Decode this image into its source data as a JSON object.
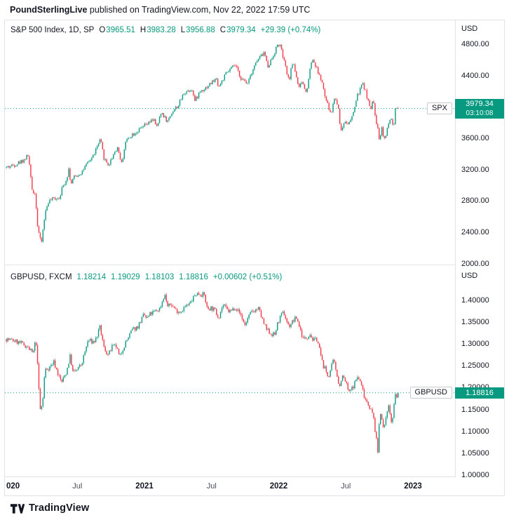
{
  "header": {
    "author": "PoundSterlingLive",
    "rest": " published on TradingView.com, Nov 22, 2022 17:59 UTC"
  },
  "footer": {
    "brand": "TradingView"
  },
  "colors": {
    "up": "#089981",
    "down": "#F23645",
    "accent": "#089981",
    "text": "#131722",
    "grid": "#e0e3eb"
  },
  "panels": [
    {
      "legend": {
        "title": "S&P 500 Index, 1D, SP",
        "items": [
          {
            "k": "O",
            "v": "3965.51"
          },
          {
            "k": "H",
            "v": "3983.28"
          },
          {
            "k": "L",
            "v": "3956.88"
          },
          {
            "k": "C",
            "v": "3979.34"
          }
        ],
        "change": "+29.39 (+0.74%)"
      },
      "currency": "USD",
      "axis_labels": [
        {
          "text": "4800.00",
          "value": 4800
        },
        {
          "text": "4400.00",
          "value": 4400
        },
        {
          "text": "4000.00",
          "value": 4000
        },
        {
          "text": "3600.00",
          "value": 3600
        },
        {
          "text": "3200.00",
          "value": 3200
        },
        {
          "text": "2800.00",
          "value": 2800
        },
        {
          "text": "2400.00",
          "value": 2400
        },
        {
          "text": "2000.00",
          "value": 2000
        }
      ],
      "last": {
        "symbol": "SPX",
        "price": "3979.34",
        "countdown": "03:10:08",
        "value": 3979.34
      }
    },
    {
      "legend": {
        "title": "GBPUSD, FXCM",
        "items": [
          {
            "k": "",
            "v": "1.18214"
          },
          {
            "k": "",
            "v": "1.19029"
          },
          {
            "k": "",
            "v": "1.18103"
          },
          {
            "k": "",
            "v": "1.18816"
          }
        ],
        "change": "+0.00602 (+0.51%)"
      },
      "currency": "USD",
      "axis_labels": [
        {
          "text": "1.40000",
          "value": 1.4
        },
        {
          "text": "1.35000",
          "value": 1.35
        },
        {
          "text": "1.30000",
          "value": 1.3
        },
        {
          "text": "1.25000",
          "value": 1.25
        },
        {
          "text": "1.20000",
          "value": 1.2
        },
        {
          "text": "1.15000",
          "value": 1.15
        },
        {
          "text": "1.10000",
          "value": 1.1
        },
        {
          "text": "1.05000",
          "value": 1.05
        },
        {
          "text": "1.00000",
          "value": 1.0
        }
      ],
      "last": {
        "symbol": "GBPUSD",
        "price": "1.18816",
        "value": 1.18816
      }
    }
  ],
  "time_axis": [
    {
      "label": "020",
      "t": 0,
      "bold": true,
      "edge": true
    },
    {
      "label": "Jul",
      "t": 6
    },
    {
      "label": "2021",
      "t": 12,
      "bold": true
    },
    {
      "label": "Jul",
      "t": 18
    },
    {
      "label": "2022",
      "t": 24,
      "bold": true
    },
    {
      "label": "Jul",
      "t": 30
    },
    {
      "label": "2023",
      "t": 36,
      "bold": true
    }
  ],
  "chart_data": [
    {
      "type": "candlestick",
      "symbol": "SPX",
      "name": "S&P 500 Index",
      "exchange": "SP",
      "timeframe": "1D",
      "x_unit": "months_since_2020_01",
      "t_range": [
        -0.4,
        34.73
      ],
      "ylim": [
        1990,
        5090
      ],
      "open": 3965.51,
      "high": 3983.28,
      "low": 3956.88,
      "last_close": 3979.34,
      "change": 29.39,
      "change_pct": 0.74,
      "anchors": [
        [
          -0.4,
          3225
        ],
        [
          0.5,
          3268
        ],
        [
          1.2,
          3322
        ],
        [
          1.63,
          3386
        ],
        [
          1.93,
          2954
        ],
        [
          2.25,
          2882
        ],
        [
          2.45,
          2481
        ],
        [
          2.77,
          2237
        ],
        [
          3.1,
          2627
        ],
        [
          3.4,
          2790
        ],
        [
          3.9,
          2830
        ],
        [
          4.4,
          2848
        ],
        [
          4.63,
          2955
        ],
        [
          5.03,
          3080
        ],
        [
          5.27,
          3232
        ],
        [
          5.4,
          3009
        ],
        [
          5.7,
          3100
        ],
        [
          6.3,
          3155
        ],
        [
          6.9,
          3271
        ],
        [
          7.4,
          3373
        ],
        [
          8.07,
          3580
        ],
        [
          8.4,
          3339
        ],
        [
          8.8,
          3255
        ],
        [
          9.3,
          3420
        ],
        [
          9.6,
          3483
        ],
        [
          9.97,
          3270
        ],
        [
          10.3,
          3550
        ],
        [
          10.77,
          3638
        ],
        [
          11.5,
          3700
        ],
        [
          11.97,
          3756
        ],
        [
          12.5,
          3800
        ],
        [
          12.87,
          3855
        ],
        [
          13.05,
          3714
        ],
        [
          13.53,
          3935
        ],
        [
          14.05,
          3811
        ],
        [
          14.5,
          3943
        ],
        [
          15.03,
          4020
        ],
        [
          15.55,
          4185
        ],
        [
          16.3,
          4233
        ],
        [
          16.45,
          4063
        ],
        [
          17.0,
          4204
        ],
        [
          17.5,
          4247
        ],
        [
          18.4,
          4360
        ],
        [
          18.65,
          4258
        ],
        [
          19.3,
          4423
        ],
        [
          19.9,
          4509
        ],
        [
          20.07,
          4537
        ],
        [
          20.67,
          4357
        ],
        [
          21.15,
          4300
        ],
        [
          21.87,
          4544
        ],
        [
          22.3,
          4630
        ],
        [
          22.73,
          4698
        ],
        [
          23.0,
          4513
        ],
        [
          23.4,
          4620
        ],
        [
          23.9,
          4791
        ],
        [
          24.1,
          4797
        ],
        [
          24.77,
          4410
        ],
        [
          24.9,
          4326
        ],
        [
          25.27,
          4587
        ],
        [
          25.6,
          4380
        ],
        [
          25.8,
          4225
        ],
        [
          26.1,
          4328
        ],
        [
          26.45,
          4173
        ],
        [
          26.97,
          4631
        ],
        [
          27.4,
          4488
        ],
        [
          27.9,
          4300
        ],
        [
          28.07,
          4155
        ],
        [
          28.6,
          3930
        ],
        [
          28.67,
          3901
        ],
        [
          29.0,
          4132
        ],
        [
          29.35,
          3978
        ],
        [
          29.55,
          3675
        ],
        [
          29.9,
          3825
        ],
        [
          30.3,
          3790
        ],
        [
          30.55,
          3863
        ],
        [
          31.0,
          4130
        ],
        [
          31.53,
          4305
        ],
        [
          32.1,
          4030
        ],
        [
          32.2,
          3908
        ],
        [
          32.4,
          4110
        ],
        [
          32.65,
          3873
        ],
        [
          33.0,
          3586
        ],
        [
          33.2,
          3745
        ],
        [
          33.43,
          3583
        ],
        [
          33.65,
          3678
        ],
        [
          33.87,
          3808
        ],
        [
          34.03,
          3872
        ],
        [
          34.17,
          3770
        ],
        [
          34.3,
          3748
        ],
        [
          34.4,
          3956
        ],
        [
          34.5,
          3993
        ],
        [
          34.62,
          3950
        ],
        [
          34.73,
          3979
        ]
      ],
      "n_candles": 290,
      "jitter": 28,
      "wick": 20,
      "seed": 42
    },
    {
      "type": "candlestick",
      "symbol": "GBPUSD",
      "name": "GBPUSD",
      "exchange": "FXCM",
      "timeframe": "1D",
      "x_unit": "months_since_2020_01",
      "t_range": [
        -0.4,
        34.73
      ],
      "ylim": [
        1.0,
        1.48
      ],
      "open": 1.18214,
      "high": 1.19029,
      "low": 1.18103,
      "last_close": 1.18816,
      "change": 0.00602,
      "change_pct": 0.51,
      "anchors": [
        [
          -0.4,
          1.312
        ],
        [
          0.4,
          1.307
        ],
        [
          0.9,
          1.302
        ],
        [
          1.5,
          1.295
        ],
        [
          1.9,
          1.282
        ],
        [
          2.05,
          1.277
        ],
        [
          2.3,
          1.313
        ],
        [
          2.5,
          1.228
        ],
        [
          2.67,
          1.149
        ],
        [
          2.9,
          1.163
        ],
        [
          3.1,
          1.241
        ],
        [
          3.5,
          1.246
        ],
        [
          3.9,
          1.259
        ],
        [
          4.3,
          1.23
        ],
        [
          4.6,
          1.212
        ],
        [
          5.0,
          1.234
        ],
        [
          5.37,
          1.273
        ],
        [
          5.6,
          1.235
        ],
        [
          5.97,
          1.24
        ],
        [
          6.4,
          1.255
        ],
        [
          6.97,
          1.309
        ],
        [
          7.3,
          1.305
        ],
        [
          7.6,
          1.307
        ],
        [
          8.03,
          1.338
        ],
        [
          8.37,
          1.292
        ],
        [
          8.77,
          1.274
        ],
        [
          9.1,
          1.293
        ],
        [
          9.5,
          1.294
        ],
        [
          9.77,
          1.268
        ],
        [
          10.1,
          1.292
        ],
        [
          10.5,
          1.312
        ],
        [
          10.9,
          1.332
        ],
        [
          11.37,
          1.339
        ],
        [
          11.97,
          1.367
        ],
        [
          12.2,
          1.357
        ],
        [
          12.5,
          1.368
        ],
        [
          12.87,
          1.373
        ],
        [
          13.37,
          1.381
        ],
        [
          13.8,
          1.414
        ],
        [
          14.1,
          1.384
        ],
        [
          14.37,
          1.392
        ],
        [
          14.8,
          1.378
        ],
        [
          15.2,
          1.374
        ],
        [
          15.57,
          1.384
        ],
        [
          16.0,
          1.39
        ],
        [
          16.6,
          1.415
        ],
        [
          17.0,
          1.4155
        ],
        [
          17.37,
          1.411
        ],
        [
          17.6,
          1.381
        ],
        [
          17.97,
          1.383
        ],
        [
          18.3,
          1.377
        ],
        [
          18.63,
          1.361
        ],
        [
          19.0,
          1.39
        ],
        [
          19.5,
          1.375
        ],
        [
          19.77,
          1.376
        ],
        [
          20.1,
          1.386
        ],
        [
          20.63,
          1.366
        ],
        [
          20.97,
          1.343
        ],
        [
          21.3,
          1.362
        ],
        [
          21.63,
          1.375
        ],
        [
          22.2,
          1.381
        ],
        [
          22.63,
          1.349
        ],
        [
          22.9,
          1.333
        ],
        [
          23.3,
          1.324
        ],
        [
          23.63,
          1.32
        ],
        [
          23.97,
          1.353
        ],
        [
          24.43,
          1.373
        ],
        [
          24.9,
          1.34
        ],
        [
          25.3,
          1.353
        ],
        [
          25.6,
          1.36
        ],
        [
          26.2,
          1.311
        ],
        [
          26.5,
          1.315
        ],
        [
          26.77,
          1.325
        ],
        [
          27.1,
          1.307
        ],
        [
          27.43,
          1.312
        ],
        [
          27.9,
          1.257
        ],
        [
          28.1,
          1.245
        ],
        [
          28.43,
          1.224
        ],
        [
          28.9,
          1.263
        ],
        [
          29.2,
          1.232
        ],
        [
          29.43,
          1.199
        ],
        [
          29.63,
          1.227
        ],
        [
          29.9,
          1.218
        ],
        [
          30.3,
          1.188
        ],
        [
          30.63,
          1.202
        ],
        [
          31.03,
          1.225
        ],
        [
          31.3,
          1.213
        ],
        [
          31.7,
          1.177
        ],
        [
          32.03,
          1.162
        ],
        [
          32.23,
          1.15
        ],
        [
          32.53,
          1.126
        ],
        [
          32.6,
          1.105
        ],
        [
          32.87,
          1.05
        ],
        [
          33.0,
          1.132
        ],
        [
          33.13,
          1.148
        ],
        [
          33.4,
          1.097
        ],
        [
          33.57,
          1.133
        ],
        [
          33.77,
          1.161
        ],
        [
          33.9,
          1.148
        ],
        [
          34.1,
          1.116
        ],
        [
          34.23,
          1.136
        ],
        [
          34.4,
          1.184
        ],
        [
          34.55,
          1.178
        ],
        [
          34.73,
          1.188
        ]
      ],
      "n_candles": 290,
      "jitter": 0.006,
      "wick": 0.0042,
      "seed": 7
    }
  ]
}
